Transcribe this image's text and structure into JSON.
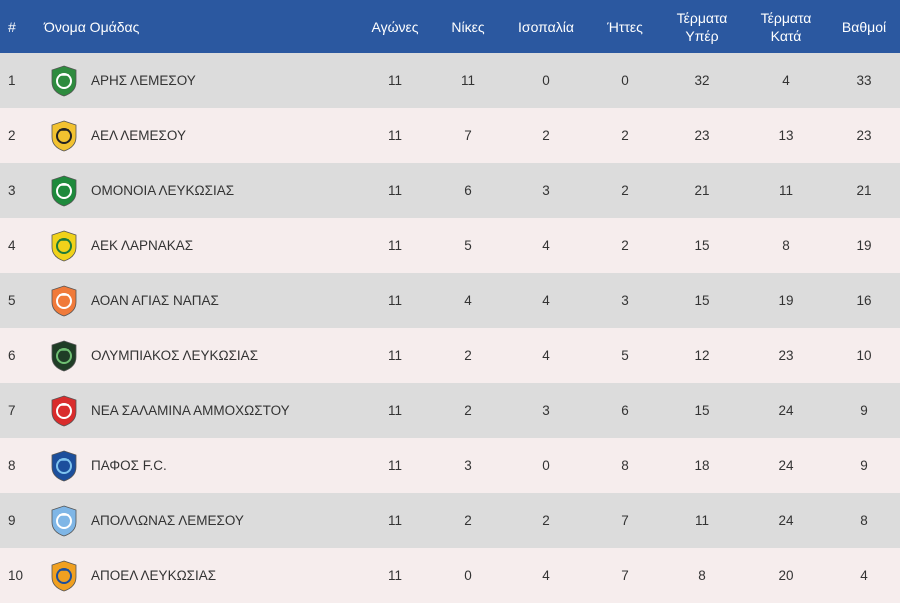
{
  "header": {
    "pos": "#",
    "team": "Όνομα Ομάδας",
    "played": "Αγώνες",
    "wins": "Νίκες",
    "draws": "Ισοπαλία",
    "losses": "Ήττες",
    "gf": [
      "Τέρματα",
      "Υπέρ"
    ],
    "ga": [
      "Τέρματα",
      "Κατά"
    ],
    "pts": "Βαθμοί"
  },
  "rows": [
    {
      "pos": "1",
      "team": "ΑΡΗΣ ΛΕΜΕΣΟΥ",
      "played": "11",
      "wins": "11",
      "draws": "0",
      "losses": "0",
      "gf": "32",
      "ga": "4",
      "pts": "33",
      "crest": "aris-crest-icon",
      "color": "#2e8b3e",
      "accent": "#ffffff"
    },
    {
      "pos": "2",
      "team": "ΑΕΛ ΛΕΜΕΣΟΥ",
      "played": "11",
      "wins": "7",
      "draws": "2",
      "losses": "2",
      "gf": "23",
      "ga": "13",
      "pts": "23",
      "crest": "ael-crest-icon",
      "color": "#f2c230",
      "accent": "#222222"
    },
    {
      "pos": "3",
      "team": "ΟΜΟΝΟΙΑ ΛΕΥΚΩΣΙΑΣ",
      "played": "11",
      "wins": "6",
      "draws": "3",
      "losses": "2",
      "gf": "21",
      "ga": "11",
      "pts": "21",
      "crest": "omonoia-crest-icon",
      "color": "#1e8a3c",
      "accent": "#ffffff"
    },
    {
      "pos": "4",
      "team": "ΑΕΚ ΛΑΡΝΑΚΑΣ",
      "played": "11",
      "wins": "5",
      "draws": "4",
      "losses": "2",
      "gf": "15",
      "ga": "8",
      "pts": "19",
      "crest": "aek-crest-icon",
      "color": "#f0d21a",
      "accent": "#1e7a3a"
    },
    {
      "pos": "5",
      "team": "ΑΟΑΝ ΑΓΙΑΣ ΝΑΠΑΣ",
      "played": "11",
      "wins": "4",
      "draws": "4",
      "losses": "3",
      "gf": "15",
      "ga": "19",
      "pts": "16",
      "crest": "ayia-napa-crest-icon",
      "color": "#f07a3a",
      "accent": "#ffffff"
    },
    {
      "pos": "6",
      "team": "ΟΛΥΜΠΙΑΚΟΣ ΛΕΥΚΩΣΙΑΣ",
      "played": "11",
      "wins": "2",
      "draws": "4",
      "losses": "5",
      "gf": "12",
      "ga": "23",
      "pts": "10",
      "crest": "olympiakos-crest-icon",
      "color": "#1f3d26",
      "accent": "#6fbf73"
    },
    {
      "pos": "7",
      "team": "ΝΕΑ ΣΑΛΑΜΙΝΑ ΑΜΜΟΧΩΣΤΟΥ",
      "played": "11",
      "wins": "2",
      "draws": "3",
      "losses": "6",
      "gf": "15",
      "ga": "24",
      "pts": "9",
      "crest": "nea-salamina-crest-icon",
      "color": "#d92c2c",
      "accent": "#ffffff"
    },
    {
      "pos": "8",
      "team": "ΠΑΦΟΣ F.C.",
      "played": "11",
      "wins": "3",
      "draws": "0",
      "losses": "8",
      "gf": "18",
      "ga": "24",
      "pts": "9",
      "crest": "pafos-crest-icon",
      "color": "#1c4f9c",
      "accent": "#7fc4ee"
    },
    {
      "pos": "9",
      "team": "ΑΠΟΛΛΩΝΑΣ ΛΕΜΕΣΟΥ",
      "played": "11",
      "wins": "2",
      "draws": "2",
      "losses": "7",
      "gf": "11",
      "ga": "24",
      "pts": "8",
      "crest": "apollon-crest-icon",
      "color": "#7fb6e6",
      "accent": "#ffffff"
    },
    {
      "pos": "10",
      "team": "ΑΠΟΕΛ ΛΕΥΚΩΣΙΑΣ",
      "played": "11",
      "wins": "0",
      "draws": "4",
      "losses": "7",
      "gf": "8",
      "ga": "20",
      "pts": "4",
      "crest": "apoel-crest-icon",
      "color": "#f0a020",
      "accent": "#1c4f9c"
    }
  ],
  "colors": {
    "header_bg": "#2b58a0",
    "row_odd": "#dcdcdc",
    "row_even": "#f6eded"
  }
}
